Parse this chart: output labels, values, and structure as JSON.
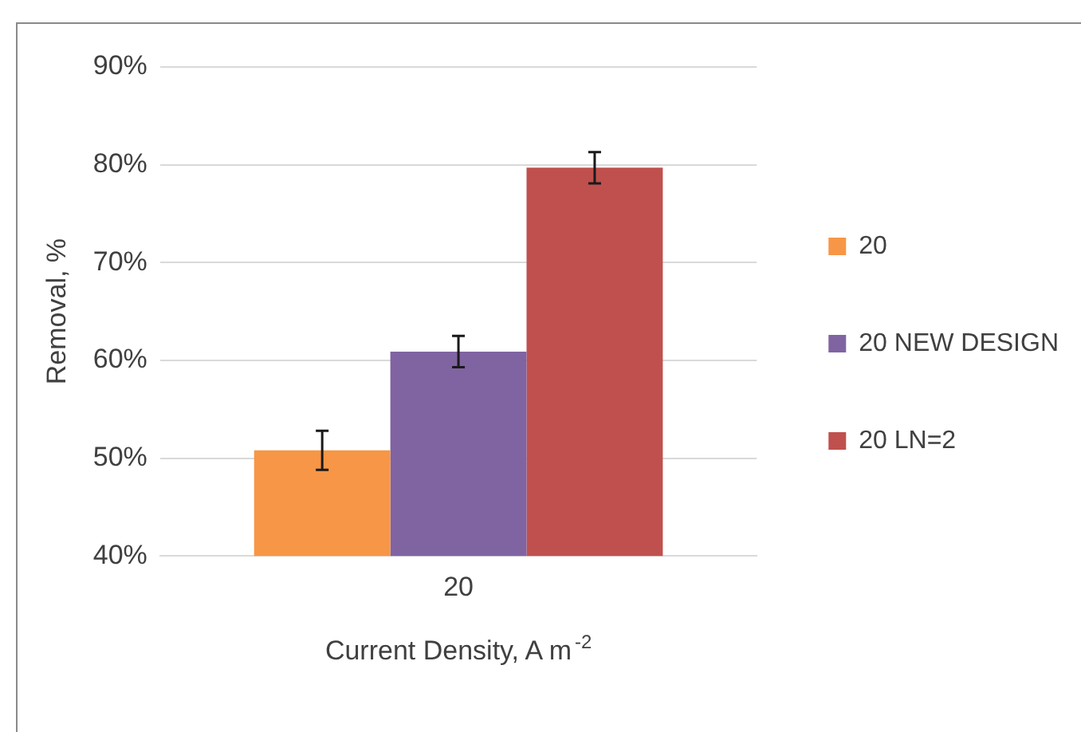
{
  "chart_data": {
    "type": "bar",
    "xlabel": "Current Density, A m$^{-2}$",
    "ylabel": "Removal, %",
    "categories": [
      "20"
    ],
    "series": [
      {
        "name": "20",
        "color": "#f79646",
        "values": [
          50.8
        ],
        "errors": [
          2.0
        ]
      },
      {
        "name": "20 NEW DESIGN",
        "color": "#8064a2",
        "values": [
          60.9
        ],
        "errors": [
          1.6
        ]
      },
      {
        "name": "20 LN=2",
        "color": "#c0504d",
        "values": [
          79.7
        ],
        "errors": [
          1.6
        ]
      }
    ],
    "ylim": [
      40,
      90
    ],
    "yticks": [
      {
        "value": 40,
        "label": "40%"
      },
      {
        "value": 50,
        "label": "50%"
      },
      {
        "value": 60,
        "label": "60%"
      },
      {
        "value": 70,
        "label": "70%"
      },
      {
        "value": 80,
        "label": "80%"
      },
      {
        "value": 90,
        "label": "90%"
      }
    ],
    "grid": "y",
    "legend": "right"
  }
}
